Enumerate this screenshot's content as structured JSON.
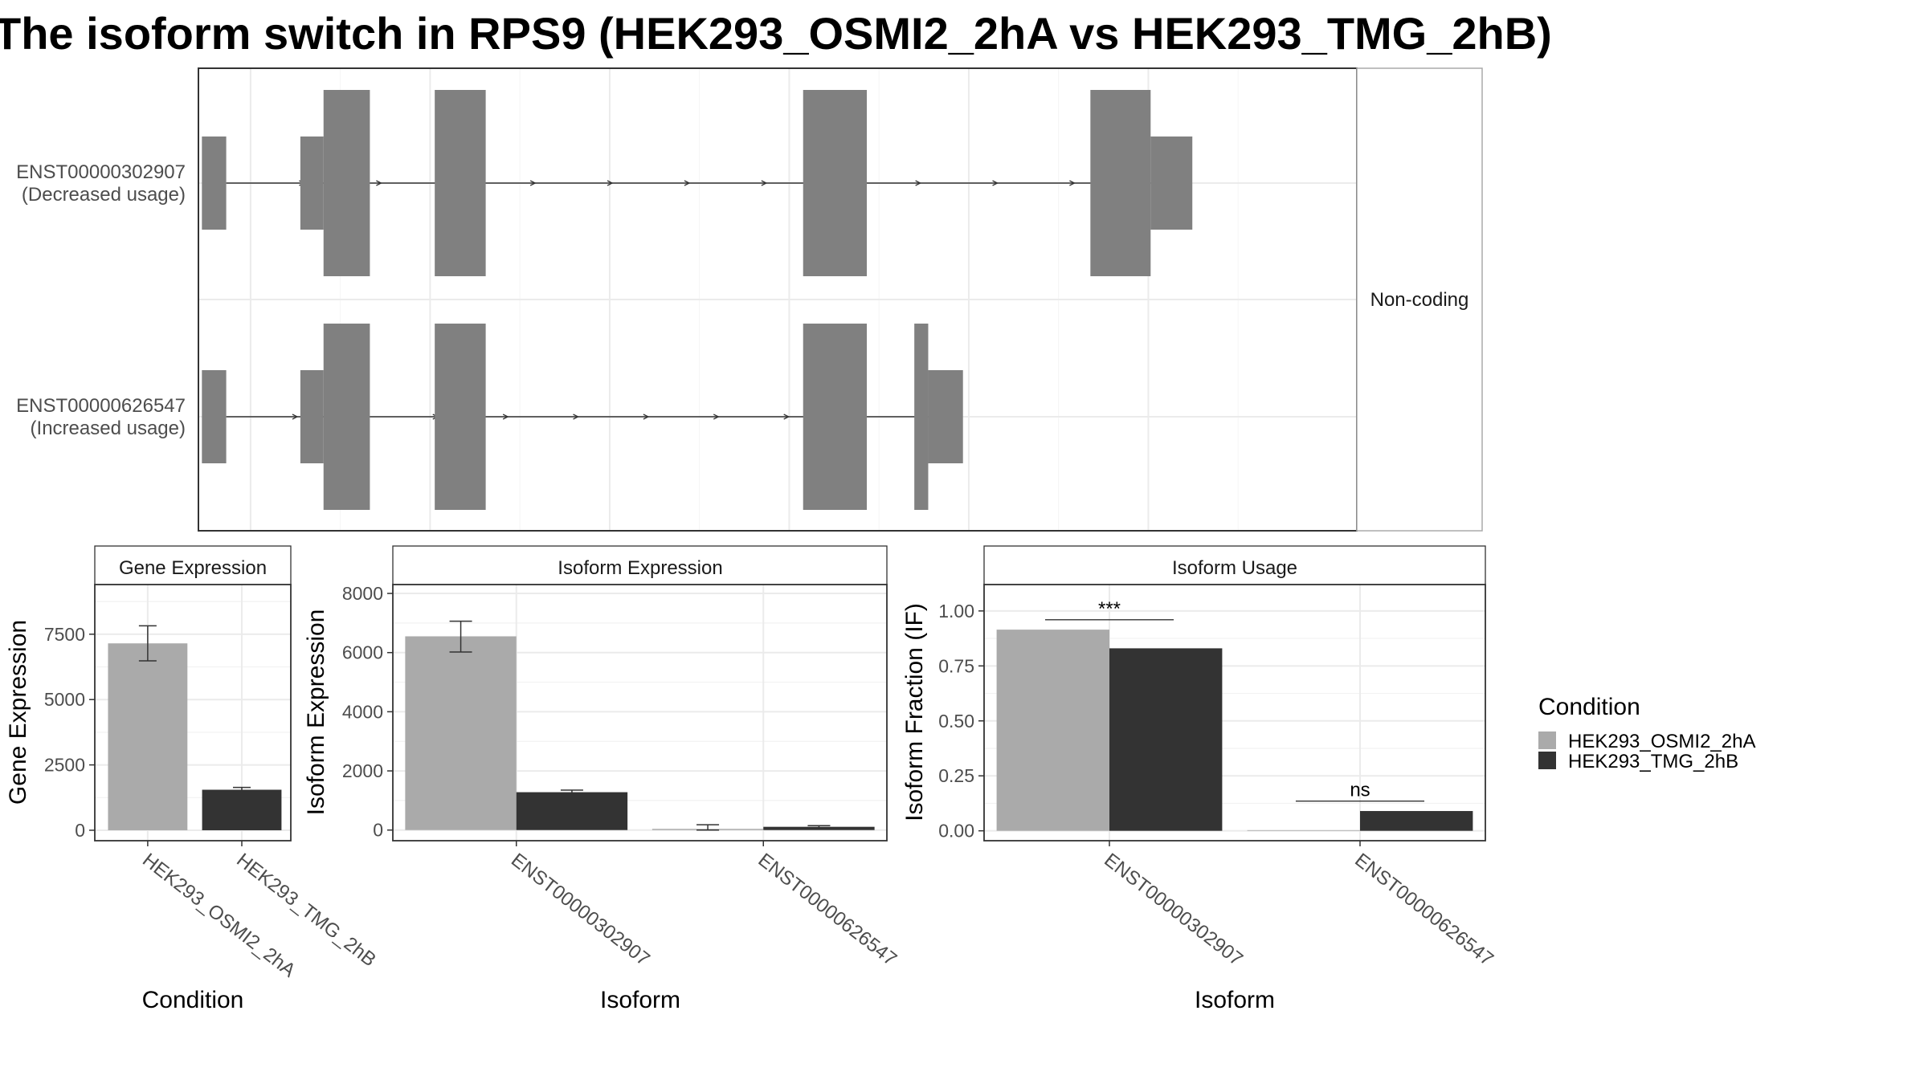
{
  "title": "The isoform switch in RPS9 (HEK293_OSMI2_2hA vs HEK293_TMG_2hB)",
  "colors": {
    "exon": "#808080",
    "condition_a": "#aaaaaa",
    "condition_b": "#333333",
    "grid": "#ebebeb",
    "strip_bg": "#ffffff"
  },
  "structure_panel": {
    "strip_label": "Non-coding",
    "transcripts": [
      {
        "id": "ENST00000302907",
        "note": "(Decreased usage)",
        "intron_arrows": 11,
        "exons": [
          {
            "type": "utr",
            "start": 0.3,
            "end": 2.4
          },
          {
            "type": "utr",
            "start": 8.8,
            "end": 10.8
          },
          {
            "type": "cds",
            "start": 10.8,
            "end": 14.8
          },
          {
            "type": "cds",
            "start": 20.4,
            "end": 24.8
          },
          {
            "type": "cds",
            "start": 52.2,
            "end": 57.7
          },
          {
            "type": "cds",
            "start": 77.0,
            "end": 82.2
          },
          {
            "type": "utr",
            "start": 82.2,
            "end": 85.8
          }
        ]
      },
      {
        "id": "ENST00000626547",
        "note": "(Increased usage)",
        "intron_arrows": 9,
        "exons": [
          {
            "type": "utr",
            "start": 0.3,
            "end": 2.4
          },
          {
            "type": "utr",
            "start": 8.8,
            "end": 10.8
          },
          {
            "type": "cds",
            "start": 10.8,
            "end": 14.8
          },
          {
            "type": "cds",
            "start": 20.4,
            "end": 24.8
          },
          {
            "type": "cds",
            "start": 52.2,
            "end": 57.7
          },
          {
            "type": "cds",
            "start": 61.8,
            "end": 63.0
          },
          {
            "type": "utr",
            "start": 63.0,
            "end": 66.0
          }
        ]
      }
    ]
  },
  "legend": {
    "title": "Condition",
    "items": [
      {
        "label": "HEK293_OSMI2_2hA",
        "color": "#aaaaaa"
      },
      {
        "label": "HEK293_TMG_2hB",
        "color": "#333333"
      }
    ]
  },
  "chart_data": [
    {
      "type": "bar",
      "title": "Gene Expression",
      "xlabel": "Condition",
      "ylabel": "Gene Expression",
      "categories": [
        "HEK293_OSMI2_2hA",
        "HEK293_TMG_2hB"
      ],
      "values": [
        7150,
        1550
      ],
      "errors": [
        [
          6480,
          7820
        ],
        [
          1480,
          1640
        ]
      ],
      "colors": [
        "#aaaaaa",
        "#333333"
      ],
      "ylim": [
        -400,
        9400
      ],
      "yticks": [
        0,
        2500,
        5000,
        7500
      ],
      "ytick_labels": [
        "0",
        "2500",
        "5000",
        "7500"
      ]
    },
    {
      "type": "bar",
      "title": "Isoform Expression",
      "xlabel": "Isoform",
      "ylabel": "Isoform Expression",
      "categories": [
        "ENST00000302907",
        "ENST00000626547"
      ],
      "series": [
        {
          "values": [
            6550,
            40
          ],
          "errors": [
            [
              6020,
              7060
            ],
            [
              0,
              180
            ]
          ]
        },
        {
          "values": [
            1280,
            110
          ],
          "errors": [
            [
              1220,
              1350
            ],
            [
              80,
              150
            ]
          ]
        }
      ],
      "ylim": [
        -360,
        8300
      ],
      "yticks": [
        0,
        2000,
        4000,
        6000,
        8000
      ],
      "ytick_labels": [
        "0",
        "2000",
        "4000",
        "6000",
        "8000"
      ]
    },
    {
      "type": "bar",
      "title": "Isoform Usage",
      "xlabel": "Isoform",
      "ylabel": "Isoform Fraction (IF)",
      "categories": [
        "ENST00000302907",
        "ENST00000626547"
      ],
      "series": [
        {
          "values": [
            0.915,
            0.003
          ]
        },
        {
          "values": [
            0.83,
            0.09
          ]
        }
      ],
      "significance": [
        "***",
        "ns"
      ],
      "ylim": [
        -0.045,
        1.12
      ],
      "yticks": [
        0,
        0.25,
        0.5,
        0.75,
        1.0
      ],
      "ytick_labels": [
        "0.00",
        "0.25",
        "0.50",
        "0.75",
        "1.00"
      ]
    }
  ]
}
